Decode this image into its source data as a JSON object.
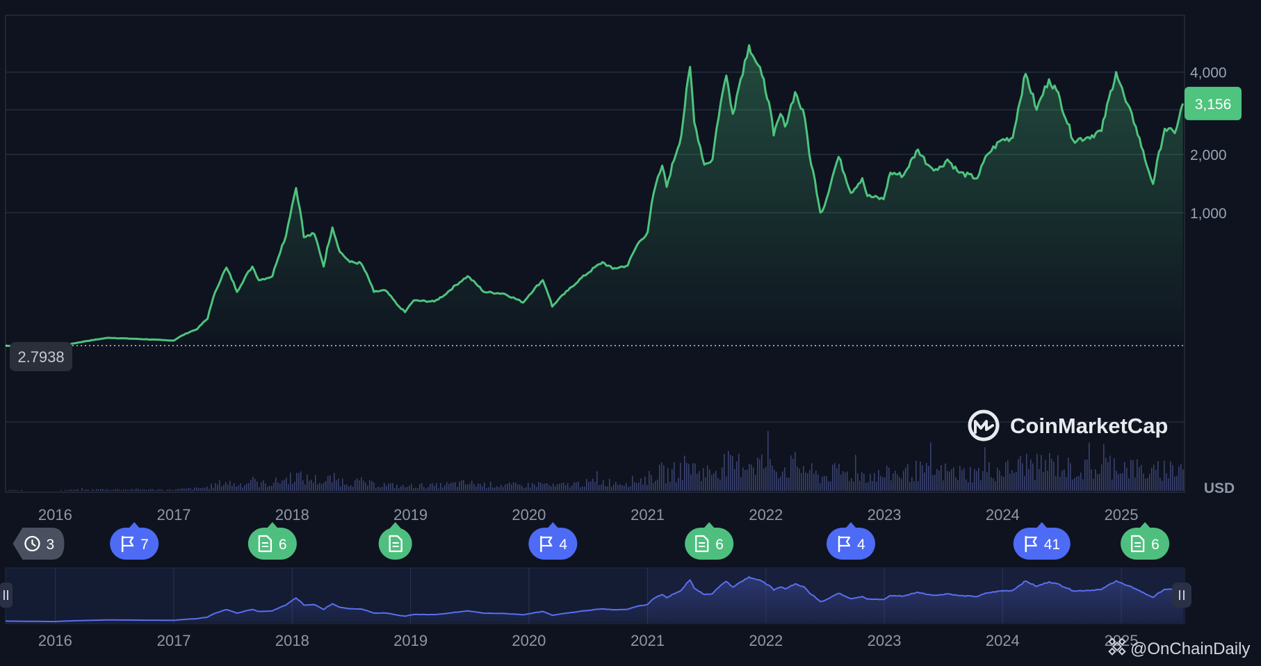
{
  "chart_data": {
    "type": "area",
    "currency": "USD",
    "y_ticks": [
      1000,
      2000,
      4000
    ],
    "y_tick_labels": [
      "1,000",
      "2,000",
      "4,000"
    ],
    "y_scale": "sqrt",
    "ylim": [
      0,
      5000
    ],
    "start_price_label": "2.7938",
    "current_price_label": "3,156",
    "x_labels": [
      "2016",
      "2017",
      "2018",
      "2019",
      "2020",
      "2021",
      "2022",
      "2023",
      "2024",
      "2025"
    ],
    "xlim": [
      "2015-08-01",
      "2025-07-15"
    ],
    "series": [
      {
        "line_color": "#4ec47e",
        "points": [
          [
            "2015-08-01",
            2.8
          ],
          [
            "2016-01-01",
            1
          ],
          [
            "2016-06-15",
            12
          ],
          [
            "2017-01-01",
            8
          ],
          [
            "2017-03-15",
            30
          ],
          [
            "2017-04-15",
            60
          ],
          [
            "2017-06-12",
            370
          ],
          [
            "2017-07-15",
            190
          ],
          [
            "2017-08-31",
            380
          ],
          [
            "2017-09-20",
            270
          ],
          [
            "2017-11-01",
            300
          ],
          [
            "2017-12-13",
            700
          ],
          [
            "2018-01-13",
            1380
          ],
          [
            "2018-01-25",
            1050
          ],
          [
            "2018-02-06",
            680
          ],
          [
            "2018-03-10",
            720
          ],
          [
            "2018-04-08",
            380
          ],
          [
            "2018-05-05",
            800
          ],
          [
            "2018-05-28",
            520
          ],
          [
            "2018-06-28",
            420
          ],
          [
            "2018-08-01",
            410
          ],
          [
            "2018-09-10",
            190
          ],
          [
            "2018-10-15",
            200
          ],
          [
            "2018-11-20",
            120
          ],
          [
            "2018-12-15",
            85
          ],
          [
            "2019-01-10",
            140
          ],
          [
            "2019-03-15",
            135
          ],
          [
            "2019-04-15",
            170
          ],
          [
            "2019-06-26",
            300
          ],
          [
            "2019-08-15",
            190
          ],
          [
            "2019-10-15",
            180
          ],
          [
            "2019-12-15",
            130
          ],
          [
            "2020-02-13",
            270
          ],
          [
            "2020-03-13",
            110
          ],
          [
            "2020-05-01",
            200
          ],
          [
            "2020-08-15",
            420
          ],
          [
            "2020-09-15",
            360
          ],
          [
            "2020-11-01",
            390
          ],
          [
            "2020-12-01",
            600
          ],
          [
            "2021-01-01",
            740
          ],
          [
            "2021-01-20",
            1300
          ],
          [
            "2021-02-15",
            1780
          ],
          [
            "2021-03-01",
            1400
          ],
          [
            "2021-04-15",
            2400
          ],
          [
            "2021-05-12",
            4150
          ],
          [
            "2021-05-25",
            2700
          ],
          [
            "2021-06-25",
            1800
          ],
          [
            "2021-07-20",
            1900
          ],
          [
            "2021-08-15",
            3200
          ],
          [
            "2021-09-01",
            3900
          ],
          [
            "2021-09-21",
            2900
          ],
          [
            "2021-10-15",
            3800
          ],
          [
            "2021-11-10",
            4800
          ],
          [
            "2021-12-01",
            4300
          ],
          [
            "2021-12-20",
            3900
          ],
          [
            "2022-01-10",
            3200
          ],
          [
            "2022-01-25",
            2400
          ],
          [
            "2022-02-15",
            2900
          ],
          [
            "2022-03-01",
            2600
          ],
          [
            "2022-04-01",
            3450
          ],
          [
            "2022-05-01",
            2800
          ],
          [
            "2022-05-15",
            2000
          ],
          [
            "2022-06-18",
            1000
          ],
          [
            "2022-07-01",
            1100
          ],
          [
            "2022-08-13",
            1950
          ],
          [
            "2022-09-20",
            1300
          ],
          [
            "2022-10-25",
            1550
          ],
          [
            "2022-11-10",
            1250
          ],
          [
            "2022-12-30",
            1200
          ],
          [
            "2023-01-20",
            1650
          ],
          [
            "2023-03-01",
            1600
          ],
          [
            "2023-04-15",
            2100
          ],
          [
            "2023-05-15",
            1800
          ],
          [
            "2023-06-15",
            1700
          ],
          [
            "2023-07-15",
            1900
          ],
          [
            "2023-08-20",
            1650
          ],
          [
            "2023-10-15",
            1550
          ],
          [
            "2023-11-15",
            2000
          ],
          [
            "2023-12-28",
            2300
          ],
          [
            "2024-02-01",
            2350
          ],
          [
            "2024-03-12",
            3950
          ],
          [
            "2024-04-15",
            3000
          ],
          [
            "2024-05-23",
            3800
          ],
          [
            "2024-06-15",
            3500
          ],
          [
            "2024-08-05",
            2300
          ],
          [
            "2024-09-15",
            2350
          ],
          [
            "2024-11-01",
            2500
          ],
          [
            "2024-12-16",
            4000
          ],
          [
            "2025-01-15",
            3200
          ],
          [
            "2025-02-15",
            2600
          ],
          [
            "2025-03-15",
            1900
          ],
          [
            "2025-04-09",
            1450
          ],
          [
            "2025-05-15",
            2550
          ],
          [
            "2025-06-15",
            2450
          ],
          [
            "2025-07-10",
            3156
          ]
        ]
      }
    ],
    "volume": {
      "color": "#3a4270"
    },
    "grid": true
  },
  "events": [
    {
      "icon": "history-icon",
      "count": "3",
      "color": "#4a5060",
      "year": "2015-11-15"
    },
    {
      "icon": "flag-icon",
      "count": "7",
      "color": "#4d6bf5",
      "year": "2016-09-01"
    },
    {
      "icon": "document-icon",
      "count": "6",
      "color": "#4fbf7f",
      "year": "2017-11-01"
    },
    {
      "icon": "document-icon",
      "count": "",
      "color": "#4fbf7f",
      "year": "2018-11-15"
    },
    {
      "icon": "flag-icon",
      "count": "4",
      "color": "#4d6bf5",
      "year": "2020-03-15"
    },
    {
      "icon": "document-icon",
      "count": "6",
      "color": "#4fbf7f",
      "year": "2021-07-10"
    },
    {
      "icon": "flag-icon",
      "count": "4",
      "color": "#4d6bf5",
      "year": "2022-09-20"
    },
    {
      "icon": "flag-icon",
      "count": "41",
      "color": "#4d6bf5",
      "year": "2024-05-01"
    },
    {
      "icon": "document-icon",
      "count": "6",
      "color": "#4fbf7f",
      "year": "2025-03-15"
    }
  ],
  "brand": {
    "name": "CoinMarketCap",
    "icon": "coinmarketcap-logo-icon"
  },
  "watermark": {
    "text": "@OnChainDaily",
    "icon": "binance-logo-icon"
  },
  "navigator": {
    "line_color": "#5a6ff0",
    "handle_icon": "drag-handle-icon"
  },
  "colors": {
    "background": "#0e131f",
    "grid": "#262d3b",
    "price_badge": "#4ec47e",
    "start_label_bg": "#2a2f3a"
  }
}
